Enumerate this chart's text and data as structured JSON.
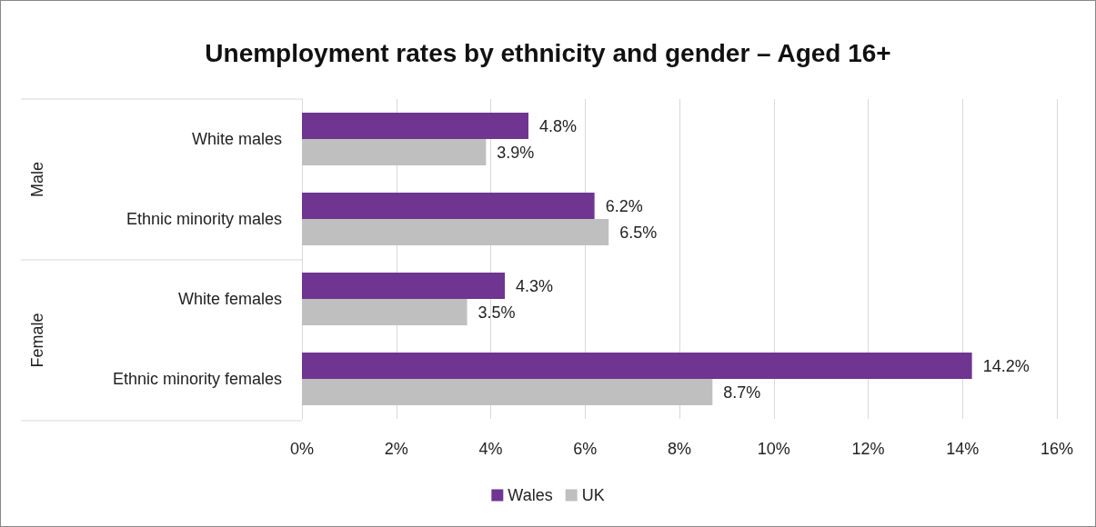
{
  "chart_data": {
    "type": "bar",
    "orientation": "horizontal",
    "title": "Unemployment rates by ethnicity and gender – Aged 16+",
    "categories": [
      "White males",
      "Ethnic minority males",
      "White females",
      "Ethnic minority females"
    ],
    "series": [
      {
        "name": "Wales",
        "color": "#6f3591",
        "values": [
          4.8,
          6.2,
          4.3,
          14.2
        ],
        "value_labels": [
          "4.8%",
          "6.2%",
          "4.3%",
          "14.2%"
        ]
      },
      {
        "name": "UK",
        "color": "#bfbfbf",
        "values": [
          3.9,
          6.5,
          3.5,
          8.7
        ],
        "value_labels": [
          "3.9%",
          "6.5%",
          "3.5%",
          "8.7%"
        ]
      }
    ],
    "xlim": [
      0,
      16
    ],
    "xticks": [
      {
        "value": 0,
        "label": "0%"
      },
      {
        "value": 2,
        "label": "2%"
      },
      {
        "value": 4,
        "label": "4%"
      },
      {
        "value": 6,
        "label": "6%"
      },
      {
        "value": 8,
        "label": "8%"
      },
      {
        "value": 10,
        "label": "10%"
      },
      {
        "value": 12,
        "label": "12%"
      },
      {
        "value": 14,
        "label": "14%"
      },
      {
        "value": 16,
        "label": "16%"
      }
    ],
    "annotations": [
      "Male",
      "Female"
    ],
    "grid": "x",
    "legend": "bottom"
  }
}
